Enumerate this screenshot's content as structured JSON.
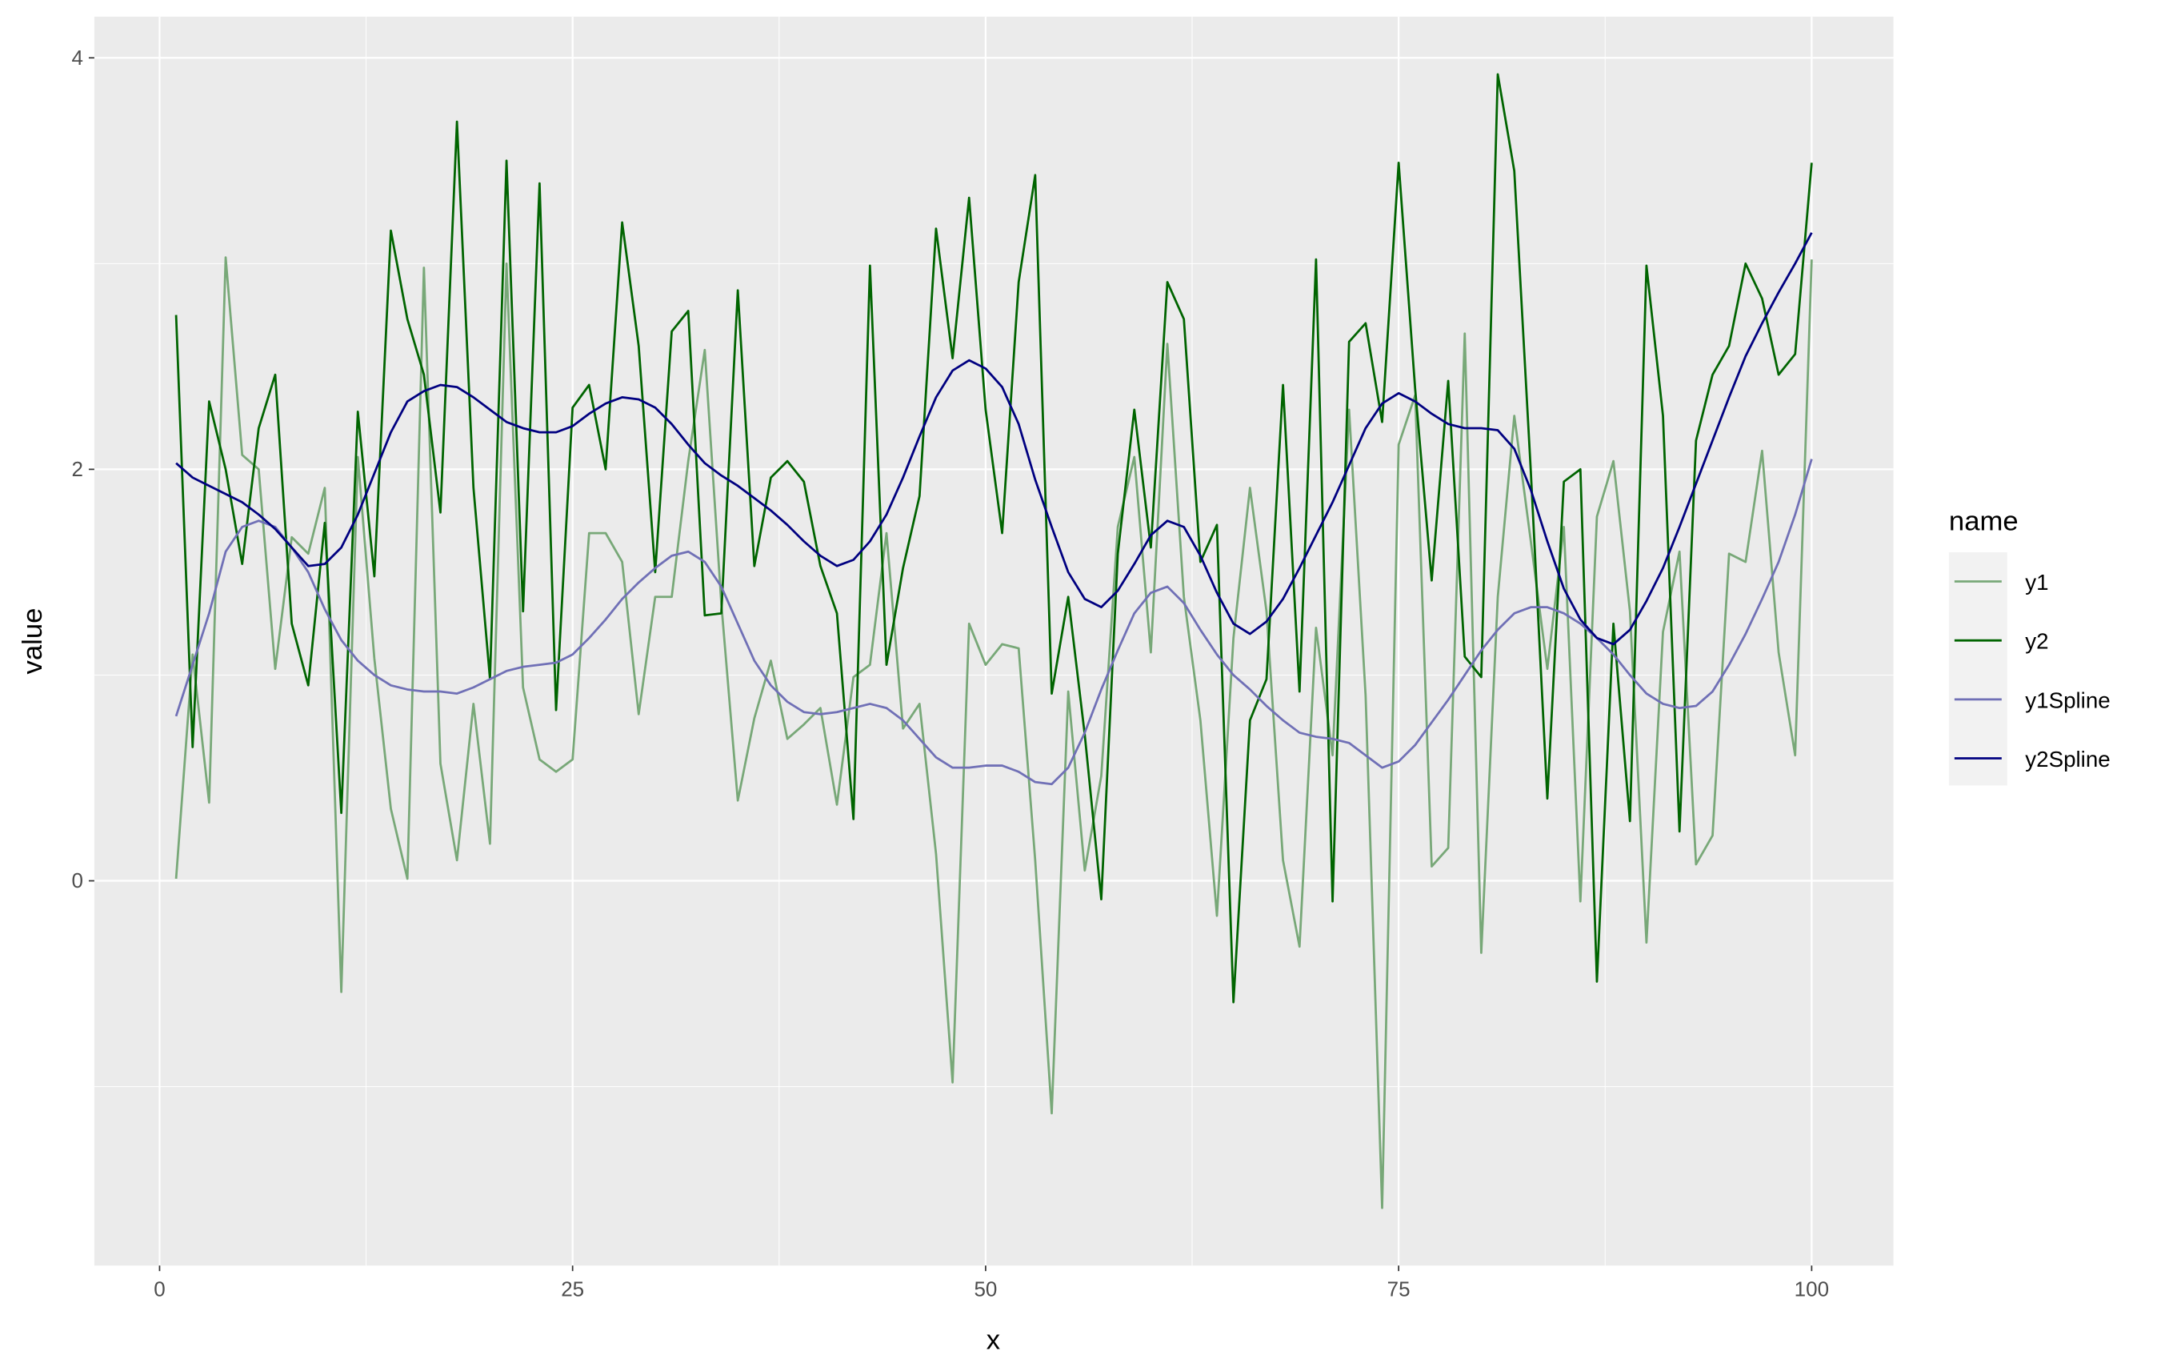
{
  "chart_data": {
    "type": "line",
    "x_label": "x",
    "y_label": "value",
    "x": [
      1,
      2,
      3,
      4,
      5,
      6,
      7,
      8,
      9,
      10,
      11,
      12,
      13,
      14,
      15,
      16,
      17,
      18,
      19,
      20,
      21,
      22,
      23,
      24,
      25,
      26,
      27,
      28,
      29,
      30,
      31,
      32,
      33,
      34,
      35,
      36,
      37,
      38,
      39,
      40,
      41,
      42,
      43,
      44,
      45,
      46,
      47,
      48,
      49,
      50,
      51,
      52,
      53,
      54,
      55,
      56,
      57,
      58,
      59,
      60,
      61,
      62,
      63,
      64,
      65,
      66,
      67,
      68,
      69,
      70,
      71,
      72,
      73,
      74,
      75,
      76,
      77,
      78,
      79,
      80,
      81,
      82,
      83,
      84,
      85,
      86,
      87,
      88,
      89,
      90,
      91,
      92,
      93,
      94,
      95,
      96,
      97,
      98,
      99,
      100
    ],
    "xlim": [
      -3.95,
      104.95
    ],
    "xticks": [
      0,
      25,
      50,
      75,
      100
    ],
    "ylim": [
      -1.87,
      4.2
    ],
    "yticks": [
      0,
      2,
      4
    ],
    "grid": true,
    "legend_title": "name",
    "legend_position": "right",
    "series": [
      {
        "name": "y1",
        "color": "#78a878",
        "values": [
          0.01,
          1.1,
          0.38,
          3.03,
          2.07,
          2.0,
          1.03,
          1.67,
          1.59,
          1.91,
          -0.54,
          2.06,
          1.08,
          0.35,
          0.01,
          2.98,
          0.57,
          0.1,
          0.86,
          0.18,
          3.0,
          0.94,
          0.59,
          0.53,
          0.59,
          1.69,
          1.69,
          1.55,
          0.81,
          1.38,
          1.38,
          2.04,
          2.58,
          1.35,
          0.39,
          0.79,
          1.07,
          0.69,
          0.76,
          0.84,
          0.37,
          0.99,
          1.05,
          1.69,
          0.74,
          0.86,
          0.13,
          -0.98,
          1.25,
          1.05,
          1.15,
          1.13,
          0.1,
          -1.13,
          0.92,
          0.05,
          0.51,
          1.72,
          2.06,
          1.11,
          2.61,
          1.38,
          0.78,
          -0.17,
          1.18,
          1.91,
          1.31,
          0.1,
          -0.32,
          1.23,
          0.61,
          2.29,
          0.9,
          -1.59,
          2.12,
          2.36,
          0.07,
          0.16,
          2.66,
          -0.35,
          1.38,
          2.26,
          1.65,
          1.03,
          1.72,
          -0.1,
          1.77,
          2.04,
          1.31,
          -0.3,
          1.21,
          1.6,
          0.08,
          0.22,
          1.59,
          1.55,
          2.09,
          1.11,
          0.61,
          3.02
        ]
      },
      {
        "name": "y2",
        "color": "#006400",
        "values": [
          2.75,
          0.65,
          2.33,
          2.0,
          1.54,
          2.2,
          2.46,
          1.25,
          0.95,
          1.74,
          0.33,
          2.28,
          1.48,
          3.16,
          2.73,
          2.46,
          1.79,
          3.69,
          1.91,
          0.98,
          3.5,
          1.31,
          3.39,
          0.83,
          2.3,
          2.41,
          2.0,
          3.2,
          2.6,
          1.5,
          2.67,
          2.77,
          1.29,
          1.3,
          2.87,
          1.53,
          1.96,
          2.04,
          1.94,
          1.53,
          1.3,
          0.3,
          2.99,
          1.05,
          1.52,
          1.87,
          3.17,
          2.54,
          3.32,
          2.29,
          1.69,
          2.91,
          3.43,
          0.91,
          1.38,
          0.71,
          -0.09,
          1.59,
          2.29,
          1.62,
          2.91,
          2.73,
          1.55,
          1.73,
          -0.59,
          0.78,
          0.98,
          2.41,
          0.92,
          3.02,
          -0.1,
          2.62,
          2.71,
          2.23,
          3.49,
          2.39,
          1.46,
          2.43,
          1.09,
          0.99,
          3.92,
          3.45,
          1.99,
          0.4,
          1.94,
          2.0,
          -0.49,
          1.25,
          0.29,
          2.99,
          2.26,
          0.24,
          2.14,
          2.46,
          2.6,
          3.0,
          2.83,
          2.46,
          2.56,
          3.49
        ]
      },
      {
        "name": "y1Spline",
        "color": "#7070b6",
        "values": [
          0.8,
          1.05,
          1.3,
          1.6,
          1.72,
          1.75,
          1.72,
          1.62,
          1.5,
          1.32,
          1.17,
          1.07,
          1.0,
          0.95,
          0.93,
          0.92,
          0.92,
          0.91,
          0.94,
          0.98,
          1.02,
          1.04,
          1.05,
          1.06,
          1.1,
          1.18,
          1.27,
          1.37,
          1.45,
          1.52,
          1.58,
          1.6,
          1.55,
          1.43,
          1.25,
          1.07,
          0.95,
          0.87,
          0.82,
          0.81,
          0.82,
          0.84,
          0.86,
          0.84,
          0.78,
          0.69,
          0.6,
          0.55,
          0.55,
          0.56,
          0.56,
          0.53,
          0.48,
          0.47,
          0.55,
          0.72,
          0.93,
          1.12,
          1.3,
          1.4,
          1.43,
          1.35,
          1.22,
          1.1,
          1.0,
          0.93,
          0.85,
          0.78,
          0.72,
          0.7,
          0.69,
          0.67,
          0.61,
          0.55,
          0.58,
          0.66,
          0.77,
          0.88,
          1.0,
          1.12,
          1.22,
          1.3,
          1.33,
          1.33,
          1.3,
          1.25,
          1.18,
          1.1,
          1.0,
          0.91,
          0.86,
          0.84,
          0.85,
          0.92,
          1.05,
          1.2,
          1.37,
          1.55,
          1.78,
          2.05
        ]
      },
      {
        "name": "y2Spline",
        "color": "#000080",
        "values": [
          2.03,
          1.96,
          1.92,
          1.88,
          1.84,
          1.78,
          1.71,
          1.62,
          1.53,
          1.54,
          1.62,
          1.78,
          1.98,
          2.18,
          2.33,
          2.38,
          2.41,
          2.4,
          2.35,
          2.29,
          2.23,
          2.2,
          2.18,
          2.18,
          2.21,
          2.27,
          2.32,
          2.35,
          2.34,
          2.3,
          2.22,
          2.12,
          2.03,
          1.97,
          1.92,
          1.86,
          1.8,
          1.73,
          1.65,
          1.58,
          1.53,
          1.56,
          1.65,
          1.78,
          1.96,
          2.16,
          2.35,
          2.48,
          2.53,
          2.49,
          2.4,
          2.22,
          1.95,
          1.72,
          1.5,
          1.37,
          1.33,
          1.41,
          1.54,
          1.68,
          1.75,
          1.72,
          1.58,
          1.4,
          1.25,
          1.2,
          1.26,
          1.37,
          1.52,
          1.68,
          1.84,
          2.02,
          2.2,
          2.32,
          2.37,
          2.33,
          2.27,
          2.22,
          2.2,
          2.2,
          2.19,
          2.1,
          1.9,
          1.65,
          1.42,
          1.27,
          1.18,
          1.15,
          1.22,
          1.36,
          1.52,
          1.72,
          1.93,
          2.14,
          2.35,
          2.55,
          2.71,
          2.86,
          3.0,
          3.15
        ]
      }
    ]
  }
}
